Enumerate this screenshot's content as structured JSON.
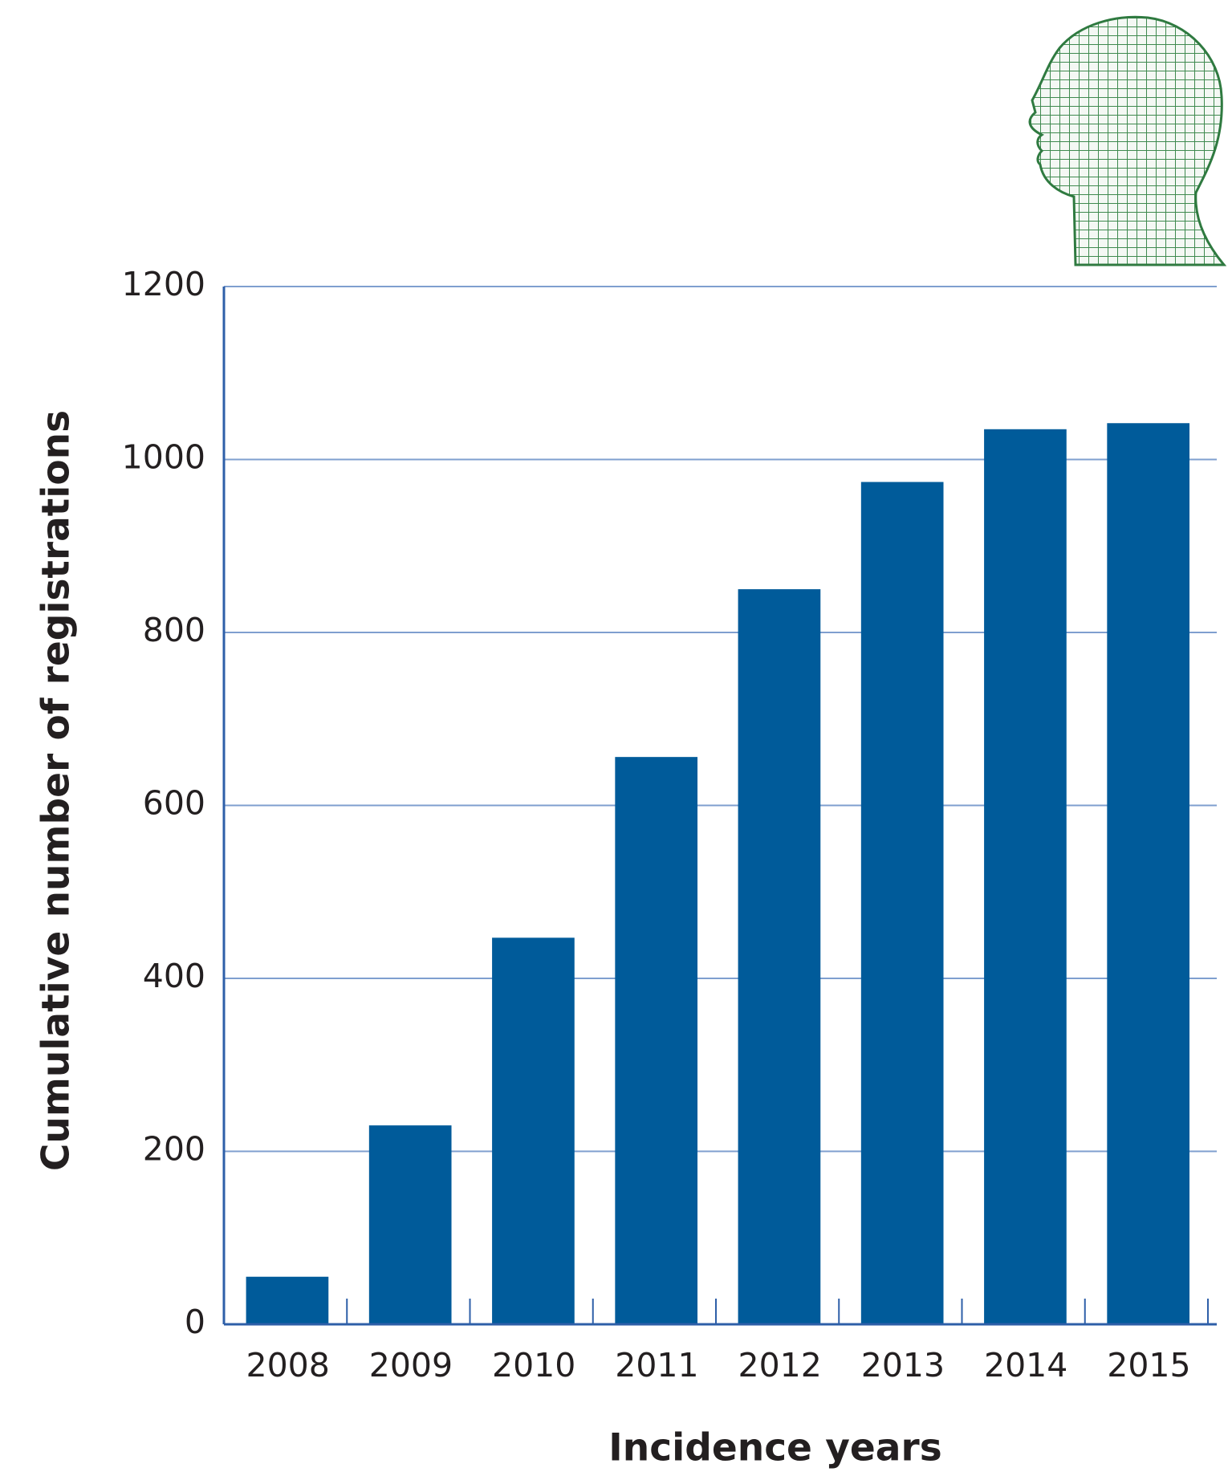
{
  "chart_data": {
    "type": "bar",
    "x_label": "Incidence years",
    "y_label": "Cumulative number of registrations",
    "categories": [
      "2008",
      "2009",
      "2010",
      "2011",
      "2012",
      "2013",
      "2014",
      "2015"
    ],
    "values": [
      55,
      230,
      447,
      656,
      850,
      974,
      1035,
      1042
    ],
    "color": "#005b9a",
    "ylim": [
      0,
      1200
    ],
    "yticks": [
      0,
      200,
      400,
      600,
      800,
      1000,
      1200
    ],
    "grid": true
  }
}
